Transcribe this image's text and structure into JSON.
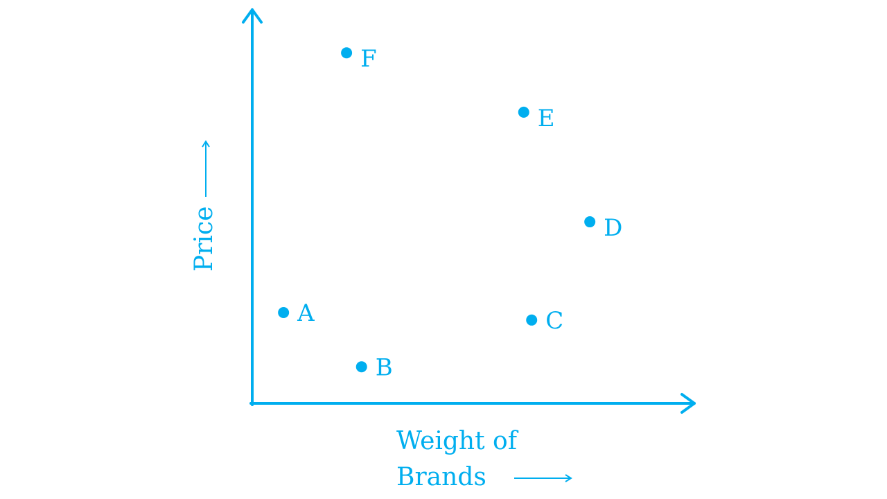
{
  "chart_data": {
    "type": "scatter",
    "title": "",
    "xlabel_line1": "Weight of",
    "xlabel_line2": "Brands",
    "ylabel": "Price",
    "xlim": [
      0,
      100
    ],
    "ylim": [
      0,
      100
    ],
    "grid": false,
    "color": "#00AEEF",
    "points": [
      {
        "label": "A",
        "x": 7.1,
        "y": 23.1
      },
      {
        "label": "B",
        "x": 24.8,
        "y": 9.3
      },
      {
        "label": "C",
        "x": 63.4,
        "y": 21.2
      },
      {
        "label": "D",
        "x": 76.6,
        "y": 46.2
      },
      {
        "label": "E",
        "x": 61.6,
        "y": 74.1
      },
      {
        "label": "F",
        "x": 21.4,
        "y": 89.2
      }
    ]
  }
}
